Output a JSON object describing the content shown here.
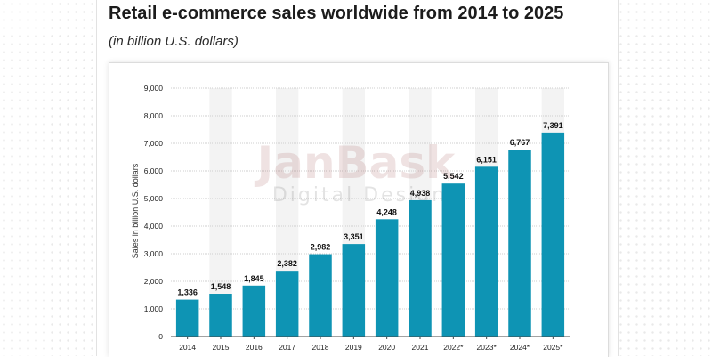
{
  "header": {
    "title": "Retail e-commerce sales worldwide from 2014 to 2025",
    "subtitle": "(in billion U.S. dollars)"
  },
  "watermark": {
    "brand": "JanBask",
    "tagline": "Digital  Design"
  },
  "colors": {
    "bar": "#0e94b4",
    "grid": "#cfcfcf",
    "axis": "#444444",
    "label": "#111111"
  },
  "chart_data": {
    "type": "bar",
    "title": "Retail e-commerce sales worldwide from 2014 to 2025",
    "subtitle": "(in billion U.S. dollars)",
    "xlabel": "",
    "ylabel": "Sales in billion U.S. dollars",
    "ylim": [
      0,
      9000
    ],
    "yticks": [
      0,
      1000,
      2000,
      3000,
      4000,
      5000,
      6000,
      7000,
      8000,
      9000
    ],
    "ytick_labels": [
      "0",
      "1,000",
      "2,000",
      "3,000",
      "4,000",
      "5,000",
      "6,000",
      "7,000",
      "8,000",
      "9,000"
    ],
    "grid": true,
    "categories": [
      "2014",
      "2015",
      "2016",
      "2017",
      "2018",
      "2019",
      "2020",
      "2021",
      "2022*",
      "2023*",
      "2024*",
      "2025*"
    ],
    "values": [
      1336,
      1548,
      1845,
      2382,
      2982,
      3351,
      4248,
      4938,
      5542,
      6151,
      6767,
      7391
    ],
    "value_labels": [
      "1,336",
      "1,548",
      "1,845",
      "2,382",
      "2,982",
      "3,351",
      "4,248",
      "4,938",
      "5,542",
      "6,151",
      "6,767",
      "7,391"
    ]
  }
}
